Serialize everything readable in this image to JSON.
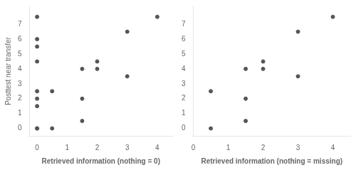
{
  "chart_data": [
    {
      "type": "scatter",
      "x": [
        0,
        0,
        0,
        0,
        0,
        0,
        0,
        0,
        0,
        0.5,
        0.5,
        1.5,
        1.5,
        1.5,
        2,
        2,
        3,
        3,
        4
      ],
      "values": [
        7.5,
        6,
        5.5,
        4.5,
        2.5,
        2,
        1.5,
        0,
        0,
        2.5,
        0,
        4,
        2,
        0.5,
        4.5,
        4,
        6.5,
        3.5,
        7.5
      ],
      "color": "#555555",
      "xlabel": "Retrieved information (nothing = 0)",
      "ylabel": "Posttest near transfer",
      "xlim": [
        -0.25,
        4.5
      ],
      "xticks": [
        0,
        1,
        2,
        3,
        4
      ],
      "ylim": [
        -0.5,
        8.2
      ],
      "yticks": [
        0,
        1,
        2,
        3,
        4,
        5,
        6,
        7
      ],
      "grid": false
    },
    {
      "type": "scatter",
      "x": [
        0.5,
        0.5,
        1.5,
        1.5,
        1.5,
        2,
        2,
        3,
        3,
        4
      ],
      "values": [
        2.5,
        0,
        4,
        2,
        0.5,
        4.5,
        4,
        6.5,
        3.5,
        7.5
      ],
      "color": "#555555",
      "xlabel": "Retrieved information (nothing = missing)",
      "xlim": [
        0.0,
        4.5
      ],
      "xticks": [
        0,
        1,
        2,
        3,
        4
      ],
      "ylim": [
        -0.5,
        8.2
      ],
      "yticks": [
        0,
        1,
        2,
        3,
        4,
        5,
        6,
        7
      ],
      "grid": false
    }
  ]
}
